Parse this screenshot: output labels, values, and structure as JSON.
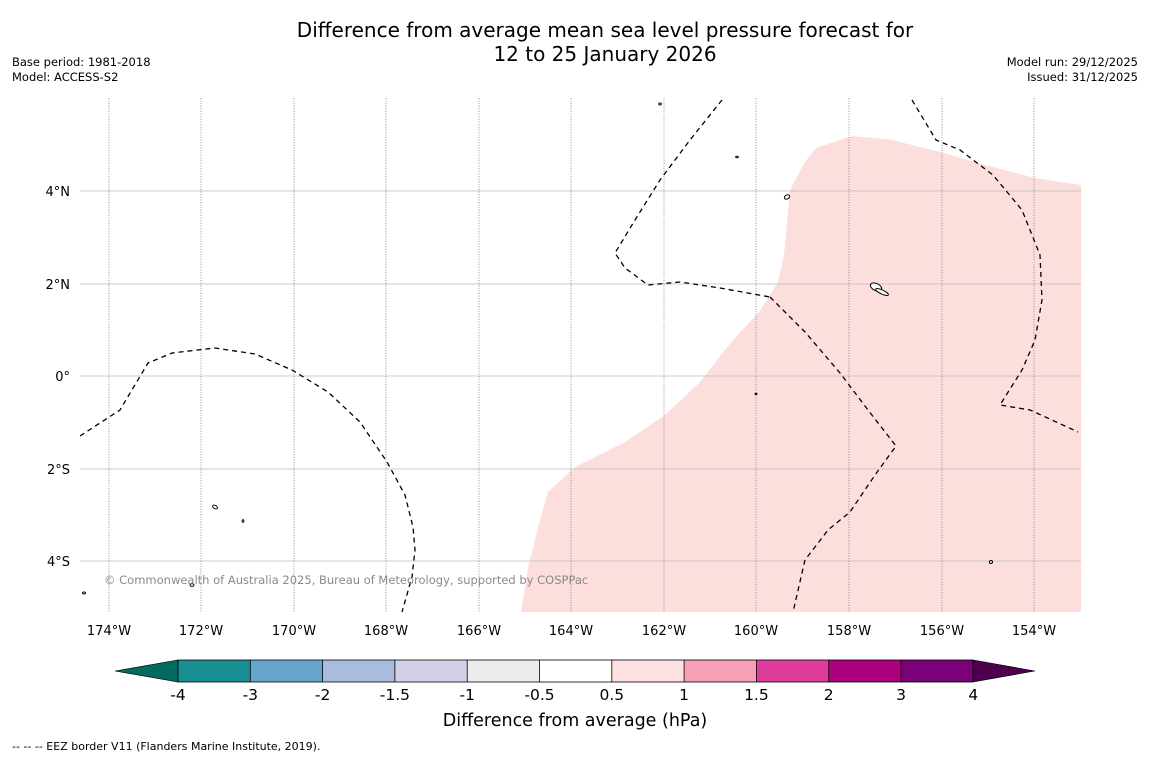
{
  "title": {
    "line1": "Difference from average mean sea level pressure forecast for",
    "line2": "12 to 25 January 2026"
  },
  "meta_left": {
    "base_period": "Base period: 1981-2018",
    "model": "Model: ACCESS-S2"
  },
  "meta_right": {
    "model_run": "Model run: 29/12/2025",
    "issued": "Issued: 31/12/2025"
  },
  "map": {
    "lon_ticks": [
      "174°W",
      "172°W",
      "170°W",
      "168°W",
      "166°W",
      "164°W",
      "162°W",
      "160°W",
      "158°W",
      "156°W",
      "154°W"
    ],
    "lat_ticks": [
      "4°N",
      "2°N",
      "0°",
      "2°S",
      "4°S"
    ],
    "copyright": "© Commonwealth of Australia 2025, Bureau of Meteorology, supported by COSPPac",
    "fill_color": "#fcdedd"
  },
  "colorbar": {
    "ticks": [
      "-4",
      "-3",
      "-2",
      "-1.5",
      "-1",
      "-0.5",
      "0.5",
      "1",
      "1.5",
      "2",
      "3",
      "4"
    ],
    "colors": [
      "#1a8f93",
      "#66a6cd",
      "#a9bcdd",
      "#d2d1e8",
      "#ececec",
      "#ffffff",
      "#fde0e0",
      "#f8a0b8",
      "#df3d9b",
      "#ad007c",
      "#7a0177"
    ],
    "low_extend_color": "#036a5f",
    "high_extend_color": "#4c004e",
    "label": "Difference from average (hPa)"
  },
  "footnote": "--  --  -- EEZ border V11 (Flanders Marine Institute, 2019)."
}
